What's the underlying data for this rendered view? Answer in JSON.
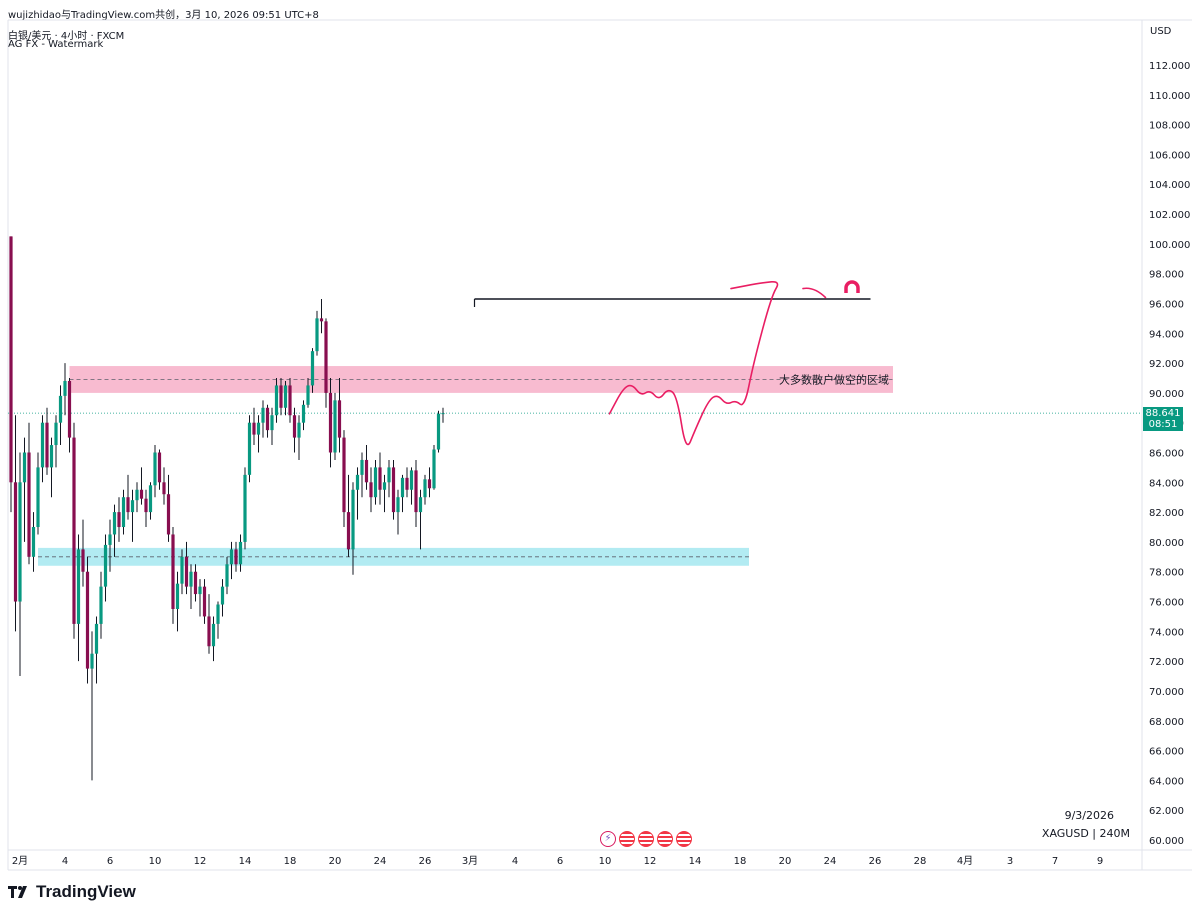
{
  "header": {
    "top_bar": "wujizhidao与TradingView.com共创，3月 10, 2026 09:51 UTC+8",
    "symbol_line": "白银/美元 · 4小时 · FXCM",
    "watermark_line": "AG FX - Watermark"
  },
  "price_axis": {
    "currency": "USD",
    "current_price": "88.641",
    "countdown": "08:51"
  },
  "footer": {
    "date_stamp": "9/3/2026",
    "symbol_interval": "XAGUSD | 240M",
    "brand": "TradingView"
  },
  "annotations": {
    "short_zone_label": "大多数散户做空的区域"
  },
  "colors": {
    "up": "#089981",
    "down": "#880e4f",
    "short_zone": "#f8bbd0",
    "support_zone": "#b2ebf2",
    "drawn_path": "#e91e63",
    "last_price_line": "#089981"
  },
  "event_icons": [
    "flash-icon",
    "us-flag-icon",
    "us-flag-icon",
    "us-flag-icon",
    "us-flag-icon"
  ],
  "chart_data": {
    "type": "candlestick",
    "title": "白银/美元 · 4小时 · FXCM",
    "ylim": [
      59.5,
      113.5
    ],
    "y_ticks": [
      "112.000",
      "110.000",
      "108.000",
      "106.000",
      "104.000",
      "102.000",
      "100.000",
      "98.000",
      "96.000",
      "94.000",
      "92.000",
      "90.000",
      "88.000",
      "86.000",
      "84.000",
      "82.000",
      "80.000",
      "78.000",
      "76.000",
      "74.000",
      "72.000",
      "70.000",
      "68.000",
      "66.000",
      "64.000",
      "62.000",
      "60.000"
    ],
    "x_ticks": [
      {
        "label": "2月",
        "bar": 2
      },
      {
        "label": "4",
        "bar": 12
      },
      {
        "label": "6",
        "bar": 22
      },
      {
        "label": "10",
        "bar": 32
      },
      {
        "label": "12",
        "bar": 42
      },
      {
        "label": "14",
        "bar": 52
      },
      {
        "label": "18",
        "bar": 62
      },
      {
        "label": "20",
        "bar": 72
      },
      {
        "label": "24",
        "bar": 82
      },
      {
        "label": "26",
        "bar": 92
      },
      {
        "label": "3月",
        "bar": 102
      },
      {
        "label": "4",
        "bar": 112
      },
      {
        "label": "6",
        "bar": 122
      },
      {
        "label": "10",
        "bar": 132
      },
      {
        "label": "12",
        "bar": 142
      },
      {
        "label": "14",
        "bar": 152
      },
      {
        "label": "18",
        "bar": 162
      },
      {
        "label": "20",
        "bar": 172
      },
      {
        "label": "24",
        "bar": 182
      },
      {
        "label": "26",
        "bar": 192
      },
      {
        "label": "28",
        "bar": 202
      },
      {
        "label": "4月",
        "bar": 212
      },
      {
        "label": "3",
        "bar": 222
      },
      {
        "label": "7",
        "bar": 232
      },
      {
        "label": "9",
        "bar": 242
      }
    ],
    "zones": [
      {
        "name": "short-zone",
        "from": 90.0,
        "to": 91.8,
        "mid": 90.9,
        "start_bar": 13,
        "end_bar": 196
      },
      {
        "name": "support-zone",
        "from": 78.4,
        "to": 79.6,
        "mid": 79.0,
        "start_bar": 6,
        "end_bar": 164
      }
    ],
    "resistance_line": {
      "price": 96.3,
      "start_bar": 103,
      "end_bar": 191
    },
    "last_price": 88.641,
    "projection_path": [
      {
        "bar": 133,
        "price": 88.6
      },
      {
        "bar": 136,
        "price": 90.3
      },
      {
        "bar": 138,
        "price": 90.6
      },
      {
        "bar": 140,
        "price": 89.8
      },
      {
        "bar": 142,
        "price": 90.2
      },
      {
        "bar": 144,
        "price": 89.5
      },
      {
        "bar": 146,
        "price": 90.3
      },
      {
        "bar": 148,
        "price": 89.8
      },
      {
        "bar": 150,
        "price": 86.0
      },
      {
        "bar": 152,
        "price": 87.5
      },
      {
        "bar": 155,
        "price": 89.5
      },
      {
        "bar": 157,
        "price": 89.9
      },
      {
        "bar": 159,
        "price": 89.2
      },
      {
        "bar": 161,
        "price": 89.5
      },
      {
        "bar": 163,
        "price": 89.0
      },
      {
        "bar": 165,
        "price": 92.0
      },
      {
        "bar": 169,
        "price": 96.5
      },
      {
        "bar": 171,
        "price": 97.5
      },
      {
        "bar": 167,
        "price": 97.4
      },
      {
        "bar": 160,
        "price": 97.0
      }
    ],
    "projection_tail": [
      {
        "bar": 176,
        "price": 97.0
      },
      {
        "bar": 181,
        "price": 96.4
      }
    ],
    "candles": [
      [
        100.5,
        100.5,
        82.0,
        84.0
      ],
      [
        84.0,
        88.5,
        74.0,
        76.0
      ],
      [
        76.0,
        86.0,
        71.0,
        84.0
      ],
      [
        84.0,
        87.0,
        80.0,
        86.0
      ],
      [
        86.0,
        88.0,
        78.5,
        79.0
      ],
      [
        79.0,
        82.0,
        78.0,
        81.0
      ],
      [
        81.0,
        86.0,
        80.5,
        85.0
      ],
      [
        85.0,
        88.5,
        84.0,
        88.0
      ],
      [
        88.0,
        89.0,
        84.5,
        85.0
      ],
      [
        85.0,
        87.0,
        83.0,
        86.5
      ],
      [
        86.5,
        88.5,
        85.0,
        88.0
      ],
      [
        88.0,
        90.5,
        86.5,
        89.8
      ],
      [
        89.8,
        92.0,
        88.5,
        90.8
      ],
      [
        90.8,
        91.0,
        86.0,
        87.0
      ],
      [
        87.0,
        88.0,
        73.5,
        74.5
      ],
      [
        74.5,
        80.5,
        72.0,
        79.5
      ],
      [
        79.5,
        81.5,
        77.0,
        78.0
      ],
      [
        78.0,
        79.0,
        70.5,
        71.5
      ],
      [
        71.5,
        74.0,
        64.0,
        72.5
      ],
      [
        72.5,
        75.0,
        70.5,
        74.5
      ],
      [
        74.5,
        78.0,
        73.5,
        77.0
      ],
      [
        77.0,
        80.5,
        76.0,
        79.8
      ],
      [
        79.8,
        81.5,
        78.0,
        80.5
      ],
      [
        80.5,
        82.5,
        79.0,
        82.0
      ],
      [
        82.0,
        83.0,
        80.0,
        81.0
      ],
      [
        81.0,
        83.5,
        80.5,
        83.0
      ],
      [
        83.0,
        84.5,
        81.5,
        82.0
      ],
      [
        82.0,
        83.5,
        80.0,
        82.8
      ],
      [
        82.8,
        84.0,
        82.0,
        83.5
      ],
      [
        83.5,
        85.0,
        82.5,
        82.9
      ],
      [
        82.9,
        83.5,
        81.0,
        82.0
      ],
      [
        82.0,
        84.0,
        81.5,
        83.8
      ],
      [
        83.8,
        86.5,
        83.0,
        86.0
      ],
      [
        86.0,
        86.2,
        83.5,
        84.0
      ],
      [
        84.0,
        85.0,
        82.5,
        83.2
      ],
      [
        83.2,
        84.5,
        80.0,
        80.5
      ],
      [
        80.5,
        81.0,
        74.5,
        75.5
      ],
      [
        75.5,
        78.0,
        74.0,
        77.2
      ],
      [
        77.2,
        79.5,
        76.5,
        79.0
      ],
      [
        79.0,
        80.0,
        76.5,
        77.0
      ],
      [
        77.0,
        78.5,
        75.5,
        78.0
      ],
      [
        78.0,
        78.5,
        76.0,
        76.5
      ],
      [
        76.5,
        77.5,
        75.0,
        77.0
      ],
      [
        77.0,
        77.5,
        74.5,
        75.0
      ],
      [
        75.0,
        76.5,
        72.5,
        73.0
      ],
      [
        73.0,
        75.0,
        72.0,
        74.5
      ],
      [
        74.5,
        76.0,
        73.5,
        75.8
      ],
      [
        75.8,
        77.5,
        75.0,
        77.0
      ],
      [
        77.0,
        79.0,
        76.5,
        78.5
      ],
      [
        78.5,
        80.0,
        77.5,
        79.5
      ],
      [
        79.5,
        80.0,
        78.0,
        78.5
      ],
      [
        78.5,
        80.5,
        78.0,
        80.0
      ],
      [
        80.0,
        85.0,
        79.5,
        84.5
      ],
      [
        84.5,
        88.5,
        84.0,
        88.0
      ],
      [
        88.0,
        89.0,
        86.5,
        87.2
      ],
      [
        87.2,
        88.5,
        86.0,
        88.0
      ],
      [
        88.0,
        89.5,
        87.0,
        89.0
      ],
      [
        89.0,
        89.2,
        87.0,
        87.5
      ],
      [
        87.5,
        89.0,
        86.5,
        88.5
      ],
      [
        88.5,
        91.0,
        88.0,
        90.5
      ],
      [
        90.5,
        91.0,
        88.5,
        89.0
      ],
      [
        89.0,
        90.8,
        88.5,
        90.5
      ],
      [
        90.5,
        91.0,
        88.0,
        88.5
      ],
      [
        88.5,
        89.0,
        86.0,
        87.0
      ],
      [
        87.0,
        88.5,
        85.5,
        88.0
      ],
      [
        88.0,
        89.5,
        87.5,
        89.2
      ],
      [
        89.2,
        91.0,
        89.0,
        90.5
      ],
      [
        90.5,
        93.0,
        90.0,
        92.8
      ],
      [
        92.8,
        95.5,
        92.5,
        95.0
      ],
      [
        95.0,
        96.3,
        94.0,
        94.8
      ],
      [
        94.8,
        95.0,
        89.0,
        90.0
      ],
      [
        90.0,
        91.0,
        85.0,
        86.0
      ],
      [
        86.0,
        90.0,
        85.5,
        89.5
      ],
      [
        89.5,
        91.0,
        86.0,
        87.0
      ],
      [
        87.0,
        87.5,
        81.0,
        82.0
      ],
      [
        82.0,
        84.5,
        79.0,
        79.5
      ],
      [
        79.5,
        84.0,
        77.8,
        83.5
      ],
      [
        83.5,
        85.0,
        81.5,
        84.5
      ],
      [
        84.5,
        86.0,
        83.0,
        85.5
      ],
      [
        85.5,
        86.5,
        83.5,
        84.0
      ],
      [
        84.0,
        85.0,
        82.0,
        83.0
      ],
      [
        83.0,
        85.5,
        82.5,
        85.0
      ],
      [
        85.0,
        86.0,
        82.5,
        83.5
      ],
      [
        83.5,
        84.5,
        82.0,
        84.0
      ],
      [
        84.0,
        85.5,
        83.0,
        85.0
      ],
      [
        85.0,
        85.5,
        81.5,
        82.0
      ],
      [
        82.0,
        83.5,
        80.5,
        83.0
      ],
      [
        83.0,
        84.5,
        82.0,
        84.3
      ],
      [
        84.3,
        85.0,
        83.0,
        83.5
      ],
      [
        83.5,
        85.0,
        82.5,
        84.8
      ],
      [
        84.8,
        85.5,
        81.0,
        82.0
      ],
      [
        82.0,
        83.5,
        79.5,
        83.0
      ],
      [
        83.0,
        84.5,
        82.5,
        84.2
      ],
      [
        84.2,
        85.0,
        83.0,
        83.6
      ],
      [
        83.6,
        86.5,
        83.5,
        86.2
      ],
      [
        86.2,
        88.8,
        86.0,
        88.6
      ],
      [
        88.6,
        89.0,
        88.0,
        88.641
      ]
    ]
  }
}
